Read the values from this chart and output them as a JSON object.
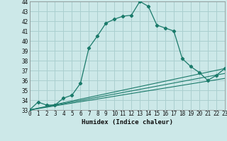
{
  "xlabel": "Humidex (Indice chaleur)",
  "xlim": [
    0,
    23
  ],
  "ylim": [
    33,
    44
  ],
  "yticks": [
    33,
    34,
    35,
    36,
    37,
    38,
    39,
    40,
    41,
    42,
    43,
    44
  ],
  "xticks": [
    0,
    1,
    2,
    3,
    4,
    5,
    6,
    7,
    8,
    9,
    10,
    11,
    12,
    13,
    14,
    15,
    16,
    17,
    18,
    19,
    20,
    21,
    22,
    23
  ],
  "background_color": "#cce8e8",
  "grid_color": "#aacfcf",
  "line_color": "#1a7a6a",
  "main_series": [
    [
      0,
      33.0
    ],
    [
      1,
      33.8
    ],
    [
      2,
      33.5
    ],
    [
      3,
      33.5
    ],
    [
      4,
      34.2
    ],
    [
      5,
      34.5
    ],
    [
      6,
      35.7
    ],
    [
      7,
      39.3
    ],
    [
      8,
      40.5
    ],
    [
      9,
      41.8
    ],
    [
      10,
      42.2
    ],
    [
      11,
      42.5
    ],
    [
      12,
      42.6
    ],
    [
      13,
      44.0
    ],
    [
      14,
      43.5
    ],
    [
      15,
      41.6
    ],
    [
      16,
      41.3
    ],
    [
      17,
      41.0
    ],
    [
      18,
      38.2
    ],
    [
      19,
      37.4
    ],
    [
      20,
      36.8
    ],
    [
      21,
      36.0
    ],
    [
      22,
      36.5
    ],
    [
      23,
      37.2
    ]
  ],
  "ref_lines": [
    [
      [
        0,
        33.0
      ],
      [
        23,
        37.2
      ]
    ],
    [
      [
        0,
        33.0
      ],
      [
        23,
        36.7
      ]
    ],
    [
      [
        0,
        33.0
      ],
      [
        23,
        36.2
      ]
    ]
  ]
}
